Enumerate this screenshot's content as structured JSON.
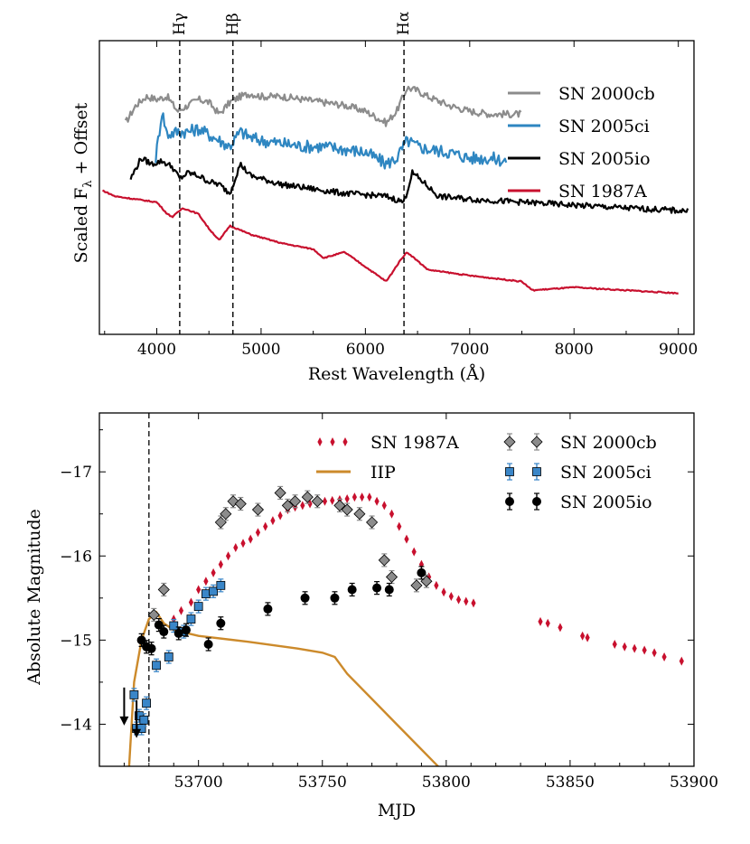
{
  "chart_data": [
    {
      "type": "line",
      "title": "",
      "xlabel": "Rest Wavelength (Å)",
      "ylabel": "Scaled Fλ + Offset",
      "xlim": [
        3450,
        9150
      ],
      "ylim": [
        0,
        10
      ],
      "xticks": [
        4000,
        5000,
        6000,
        7000,
        8000,
        9000
      ],
      "xtick_labels": [
        "4000",
        "5000",
        "6000",
        "7000",
        "8000",
        "9000"
      ],
      "legend_position": "top-right",
      "lines": [
        {
          "label": "Hγ",
          "x": 4220
        },
        {
          "label": "Hβ",
          "x": 4730
        },
        {
          "label": "Hα",
          "x": 6370
        }
      ],
      "series": [
        {
          "name": "SN 2000cb",
          "color": "#8c8c8c",
          "x": [
            3700,
            3800,
            3900,
            4000,
            4100,
            4200,
            4300,
            4400,
            4500,
            4600,
            4700,
            4800,
            4900,
            5000,
            5200,
            5400,
            5600,
            5800,
            6000,
            6200,
            6300,
            6400,
            6500,
            6600,
            6800,
            7000,
            7200,
            7500
          ],
          "y": [
            7.2,
            7.8,
            8.1,
            8.0,
            8.1,
            7.6,
            7.8,
            8.0,
            7.9,
            7.5,
            7.9,
            8.1,
            8.2,
            8.1,
            8.1,
            8.0,
            7.9,
            7.8,
            7.6,
            7.2,
            7.6,
            8.4,
            8.3,
            8.1,
            7.8,
            7.6,
            7.5,
            7.5
          ]
        },
        {
          "name": "SN 2005ci",
          "color": "#2e86c1",
          "x": [
            3990,
            4050,
            4100,
            4200,
            4300,
            4400,
            4500,
            4600,
            4700,
            4800,
            4900,
            5000,
            5200,
            5400,
            5600,
            5800,
            6000,
            6200,
            6300,
            6400,
            6500,
            6600,
            6800,
            7000,
            7200,
            7350
          ],
          "y": [
            6.0,
            7.6,
            6.8,
            6.9,
            6.9,
            7.0,
            6.8,
            6.6,
            6.4,
            6.9,
            6.7,
            6.6,
            6.5,
            6.4,
            6.4,
            6.3,
            6.2,
            5.8,
            6.0,
            6.6,
            6.4,
            6.3,
            6.2,
            6.0,
            6.0,
            5.9
          ]
        },
        {
          "name": "SN 2005io",
          "color": "#000000",
          "x": [
            3750,
            3850,
            3950,
            4050,
            4150,
            4220,
            4300,
            4400,
            4500,
            4600,
            4700,
            4800,
            4900,
            5000,
            5200,
            5400,
            5600,
            5800,
            6000,
            6200,
            6370,
            6450,
            6550,
            6700,
            7000,
            7500,
            8000,
            8500,
            9100
          ],
          "y": [
            5.3,
            6.0,
            5.8,
            5.9,
            5.7,
            5.3,
            5.5,
            5.4,
            5.2,
            5.1,
            4.8,
            5.8,
            5.4,
            5.3,
            5.1,
            5.0,
            4.9,
            4.8,
            4.75,
            4.7,
            4.5,
            5.5,
            5.2,
            4.7,
            4.6,
            4.5,
            4.4,
            4.3,
            4.2
          ]
        },
        {
          "name": "SN 1987A",
          "color": "#c8102e",
          "x": [
            3480,
            3600,
            3800,
            4000,
            4100,
            4150,
            4250,
            4400,
            4500,
            4600,
            4700,
            4900,
            5200,
            5500,
            5600,
            5800,
            6000,
            6200,
            6350,
            6400,
            6600,
            7000,
            7500,
            7600,
            8000,
            8500,
            9000
          ],
          "y": [
            4.9,
            4.7,
            4.6,
            4.5,
            4.1,
            4.0,
            4.3,
            4.1,
            3.6,
            3.2,
            3.7,
            3.4,
            3.1,
            2.9,
            2.6,
            2.8,
            2.3,
            1.8,
            2.6,
            2.8,
            2.2,
            2.0,
            1.8,
            1.5,
            1.6,
            1.5,
            1.4
          ]
        }
      ]
    },
    {
      "type": "scatter",
      "title": "",
      "xlabel": "MJD",
      "ylabel": "Absolute Magnitude",
      "xlim": [
        53660,
        53900
      ],
      "ylim": [
        -13.5,
        -17.7
      ],
      "y_inverted": true,
      "xticks": [
        53700,
        53750,
        53800,
        53850,
        53900
      ],
      "xtick_labels": [
        "53700",
        "53750",
        "53800",
        "53850",
        "53900"
      ],
      "yticks": [
        -14,
        -15,
        -16,
        -17
      ],
      "ytick_labels": [
        "−14",
        "−15",
        "−16",
        "−17"
      ],
      "vline_x": 53680,
      "legend_position": "top-right",
      "series": [
        {
          "name": "SN 1987A",
          "color": "#c8102e",
          "marker": "thin-diamond",
          "x": [
            53690,
            53693,
            53697,
            53700,
            53703,
            53706,
            53709,
            53712,
            53715,
            53718,
            53721,
            53724,
            53727,
            53730,
            53733,
            53736,
            53739,
            53742,
            53745,
            53748,
            53751,
            53754,
            53757,
            53760,
            53763,
            53766,
            53769,
            53772,
            53775,
            53778,
            53781,
            53784,
            53787,
            53790,
            53793,
            53796,
            53799,
            53802,
            53805,
            53808,
            53811,
            53838,
            53841,
            53846,
            53855,
            53857,
            53868,
            53872,
            53876,
            53880,
            53884,
            53888,
            53895
          ],
          "y": [
            -15.25,
            -15.35,
            -15.45,
            -15.6,
            -15.7,
            -15.8,
            -15.9,
            -16.0,
            -16.1,
            -16.15,
            -16.2,
            -16.28,
            -16.35,
            -16.42,
            -16.48,
            -16.55,
            -16.58,
            -16.6,
            -16.62,
            -16.64,
            -16.65,
            -16.66,
            -16.67,
            -16.68,
            -16.7,
            -16.7,
            -16.7,
            -16.65,
            -16.6,
            -16.5,
            -16.35,
            -16.2,
            -16.05,
            -15.9,
            -15.75,
            -15.65,
            -15.57,
            -15.52,
            -15.48,
            -15.46,
            -15.44,
            -15.22,
            -15.2,
            -15.15,
            -15.05,
            -15.03,
            -14.95,
            -14.92,
            -14.9,
            -14.88,
            -14.85,
            -14.8,
            -14.75
          ]
        },
        {
          "name": "IIP",
          "color": "#cc8a2b",
          "marker": "line",
          "x": [
            53672,
            53674,
            53677,
            53680,
            53683,
            53686,
            53690,
            53700,
            53720,
            53740,
            53750,
            53755,
            53760,
            53770,
            53780,
            53790,
            53795,
            53800
          ],
          "y": [
            -13.5,
            -14.5,
            -15.0,
            -15.25,
            -15.33,
            -15.2,
            -15.12,
            -15.05,
            -14.98,
            -14.9,
            -14.85,
            -14.8,
            -14.6,
            -14.3,
            -14.0,
            -13.7,
            -13.55,
            -13.4
          ]
        },
        {
          "name": "SN 2000cb",
          "color": "#8c8c8c",
          "marker": "diamond",
          "x": [
            53682,
            53686,
            53709,
            53711,
            53714,
            53717,
            53724,
            53733,
            53736,
            53739,
            53744,
            53748,
            53757,
            53760,
            53765,
            53770,
            53775,
            53778,
            53788,
            53792
          ],
          "y": [
            -15.3,
            -15.6,
            -16.4,
            -16.5,
            -16.65,
            -16.62,
            -16.55,
            -16.75,
            -16.6,
            -16.65,
            -16.7,
            -16.65,
            -16.6,
            -16.55,
            -16.5,
            -16.4,
            -15.95,
            -15.75,
            -15.65,
            -15.7
          ]
        },
        {
          "name": "SN 2005ci",
          "color": "#3a86c8",
          "marker": "square",
          "x": [
            53674,
            53675,
            53676,
            53677,
            53678,
            53679,
            53683,
            53688,
            53690,
            53694,
            53697,
            53700,
            53703,
            53706,
            53709
          ],
          "y": [
            -14.35,
            -13.95,
            -14.1,
            -13.95,
            -14.05,
            -14.25,
            -14.7,
            -14.8,
            -15.17,
            -15.1,
            -15.25,
            -15.4,
            -15.55,
            -15.58,
            -15.65
          ]
        },
        {
          "name": "SN 2005io",
          "color": "#000000",
          "marker": "circle",
          "x": [
            53677,
            53679,
            53681,
            53684,
            53686,
            53692,
            53695,
            53704,
            53709,
            53728,
            53743,
            53755,
            53762,
            53772,
            53777,
            53790
          ],
          "y": [
            -15.0,
            -14.92,
            -14.9,
            -15.18,
            -15.1,
            -15.08,
            -15.12,
            -14.95,
            -15.2,
            -15.37,
            -15.5,
            -15.5,
            -15.6,
            -15.62,
            -15.6,
            -15.8
          ]
        }
      ],
      "upper_limits": {
        "x": [
          53670,
          53675
        ],
        "y": [
          -14.2,
          -14.05
        ]
      }
    }
  ]
}
